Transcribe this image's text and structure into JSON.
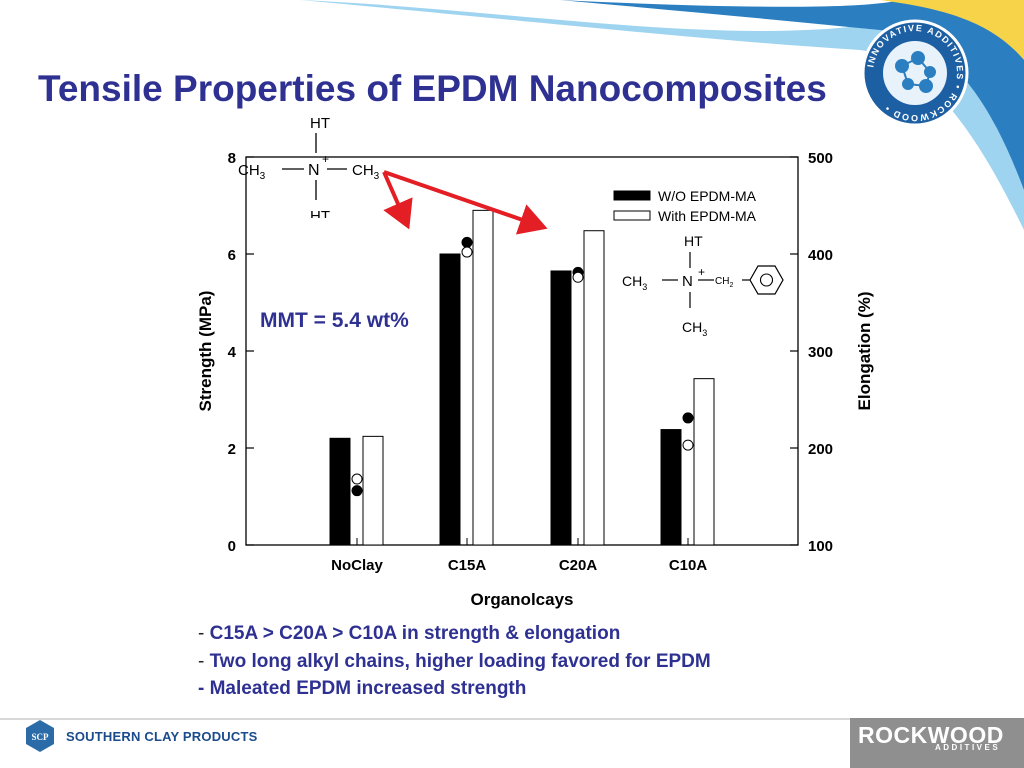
{
  "title": "Tensile Properties of EPDM Nanocomposites",
  "annotation": "MMT = 5.4 wt%",
  "bullets": [
    {
      "dash": "-",
      "text": "C15A > C20A > C10A in strength & elongation"
    },
    {
      "dash": "-",
      "text": "Two long alkyl chains, higher loading favored for EPDM"
    },
    {
      "dash": "-",
      "text": "Maleated EPDM increased strength"
    }
  ],
  "footer": {
    "left_logo_mark": "SCP",
    "left_logo_text": "SOUTHERN CLAY PRODUCTS",
    "right_logo_text": "ROCKWOOD",
    "right_logo_sub": "ADDITIVES"
  },
  "badge": {
    "text": "INNOVATIVE ADDITIVES • ROCKWOOD •"
  },
  "structures": {
    "top": {
      "top": "HT",
      "left": "CH",
      "left_sub": "3",
      "center": "N",
      "charge": "+",
      "right": "CH",
      "right_sub": "3",
      "bottom": "HT"
    },
    "bottom": {
      "top": "HT",
      "left": "CH",
      "left_sub": "3",
      "center": "N",
      "charge": "+",
      "right": "CH",
      "right_sub": "2",
      "bottom": "CH",
      "bottom_sub": "3"
    }
  },
  "colors": {
    "title": "#2e3192",
    "text_blue": "#2e3192",
    "arrow": "#e31e24",
    "bar_fill_black": "#000000",
    "bar_fill_white": "#ffffff",
    "band_dark": "#2b7fc1",
    "band_light": "#9fd4f0",
    "band_yellow": "#f7d34a"
  },
  "chart_data": {
    "type": "bar",
    "xlabel": "Organolcays",
    "ylabel": "Strength (MPa)",
    "y2label": "Elongation (%)",
    "ylim": [
      0,
      8
    ],
    "y2lim": [
      100,
      500
    ],
    "yticks": [
      "0",
      "2",
      "4",
      "6",
      "8"
    ],
    "y2ticks": [
      "100",
      "200",
      "300",
      "400",
      "500"
    ],
    "categories": [
      "NoClay",
      "C15A",
      "C20A",
      "C10A"
    ],
    "legend_position": "top-right",
    "series": [
      {
        "name": "W/O EPDM-MA",
        "axis": "left",
        "style": "black bar",
        "values": [
          2.2,
          6.0,
          5.65,
          2.38
        ]
      },
      {
        "name": "With EPDM-MA",
        "axis": "left",
        "style": "white bar",
        "values": [
          2.24,
          6.9,
          6.48,
          3.43
        ]
      },
      {
        "axis": "right",
        "style": "filled circle",
        "values": [
          156,
          412,
          381,
          231
        ]
      },
      {
        "axis": "right",
        "style": "open circle",
        "values": [
          168,
          402,
          376,
          203
        ]
      }
    ]
  }
}
